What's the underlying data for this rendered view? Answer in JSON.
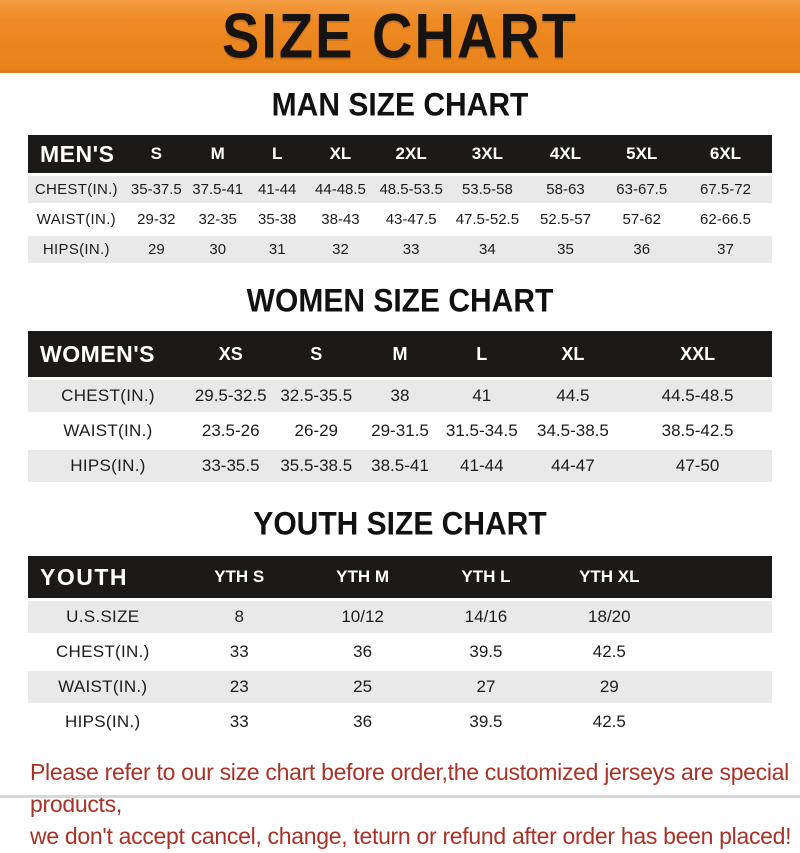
{
  "banner": {
    "title": "SIZE CHART"
  },
  "sections": [
    {
      "title": "MAN SIZE CHART",
      "table": {
        "header_label": "MEN'S",
        "columns": [
          "S",
          "M",
          "L",
          "XL",
          "2XL",
          "3XL",
          "4XL",
          "5XL",
          "6XL"
        ],
        "rows": [
          {
            "label": "CHEST(IN.)",
            "values": [
              "35-37.5",
              "37.5-41",
              "41-44",
              "44-48.5",
              "48.5-53.5",
              "53.5-58",
              "58-63",
              "63-67.5",
              "67.5-72"
            ]
          },
          {
            "label": "WAIST(IN.)",
            "values": [
              "29-32",
              "32-35",
              "35-38",
              "38-43",
              "43-47.5",
              "47.5-52.5",
              "52.5-57",
              "57-62",
              "62-66.5"
            ]
          },
          {
            "label": "HIPS(IN.)",
            "values": [
              "29",
              "30",
              "31",
              "32",
              "33",
              "34",
              "35",
              "36",
              "37"
            ]
          }
        ]
      }
    },
    {
      "title": "WOMEN SIZE CHART",
      "table": {
        "header_label": "WOMEN'S",
        "columns": [
          "XS",
          "S",
          "M",
          "L",
          "XL",
          "XXL"
        ],
        "rows": [
          {
            "label": "CHEST(IN.)",
            "values": [
              "29.5-32.5",
              "32.5-35.5",
              "38",
              "41",
              "44.5",
              "44.5-48.5"
            ]
          },
          {
            "label": "WAIST(IN.)",
            "values": [
              "23.5-26",
              "26-29",
              "29-31.5",
              "31.5-34.5",
              "34.5-38.5",
              "38.5-42.5"
            ]
          },
          {
            "label": "HIPS(IN.)",
            "values": [
              "33-35.5",
              "35.5-38.5",
              "38.5-41",
              "41-44",
              "44-47",
              "47-50"
            ]
          }
        ]
      }
    },
    {
      "title": "YOUTH SIZE CHART",
      "table": {
        "header_label": "YOUTH",
        "columns": [
          "YTH S",
          "YTH M",
          "YTH L",
          "YTH XL"
        ],
        "rows": [
          {
            "label": "U.S.SIZE",
            "values": [
              "8",
              "10/12",
              "14/16",
              "18/20"
            ]
          },
          {
            "label": "CHEST(IN.)",
            "values": [
              "33",
              "36",
              "39.5",
              "42.5"
            ]
          },
          {
            "label": "WAIST(IN.)",
            "values": [
              "23",
              "25",
              "27",
              "29"
            ]
          },
          {
            "label": "HIPS(IN.)",
            "values": [
              "33",
              "36",
              "39.5",
              "42.5"
            ]
          }
        ]
      }
    }
  ],
  "footer": {
    "line1": "Please refer to our size chart before order,the customized jerseys are special products,",
    "line2": "we don't accept cancel, change, teturn or refund after order has been placed!"
  },
  "colors": {
    "banner_orange": "#EE8A23",
    "header_black": "#1B1A18",
    "row_gray": "#E9E9E9",
    "footer_red": "#A93226"
  }
}
